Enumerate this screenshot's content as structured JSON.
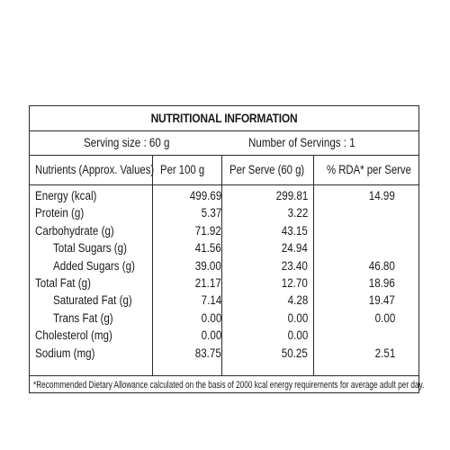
{
  "title": "NUTRITIONAL INFORMATION",
  "serving_size": "Serving size : 60 g",
  "servings_count": "Number of Servings : 1",
  "headers": {
    "nutrients": "Nutrients (Approx. Values)",
    "per100": "Per 100 g",
    "perserve": "Per Serve (60 g)",
    "rda": "% RDA* per Serve"
  },
  "rows": [
    {
      "name": "Energy (kcal)",
      "per100": "499.69",
      "perserve": "299.81",
      "rda": "14.99"
    },
    {
      "name": "Protein (g)",
      "per100": "5.37",
      "perserve": "3.22",
      "rda": ""
    },
    {
      "name": "Carbohydrate (g)",
      "per100": "71.92",
      "perserve": "43.15",
      "rda": ""
    },
    {
      "name": "Total Sugars (g)",
      "per100": "41.56",
      "perserve": "24.94",
      "rda": ""
    },
    {
      "name": "Added Sugars (g)",
      "per100": "39.00",
      "perserve": "23.40",
      "rda": "46.80"
    },
    {
      "name": "Total Fat (g)",
      "per100": "21.17",
      "perserve": "12.70",
      "rda": "18.96"
    },
    {
      "name": "Saturated Fat (g)",
      "per100": "7.14",
      "perserve": "4.28",
      "rda": "19.47"
    },
    {
      "name": "Trans Fat (g)",
      "per100": "0.00",
      "perserve": "0.00",
      "rda": "0.00"
    },
    {
      "name": "Cholesterol (mg)",
      "per100": "0.00",
      "perserve": "0.00",
      "rda": ""
    },
    {
      "name": "Sodium (mg)",
      "per100": "83.75",
      "perserve": "50.25",
      "rda": "2.51"
    }
  ],
  "footnote": "*Recommended Dietary Allowance calculated on the basis of 2000 kcal energy requirements for average adult per day."
}
